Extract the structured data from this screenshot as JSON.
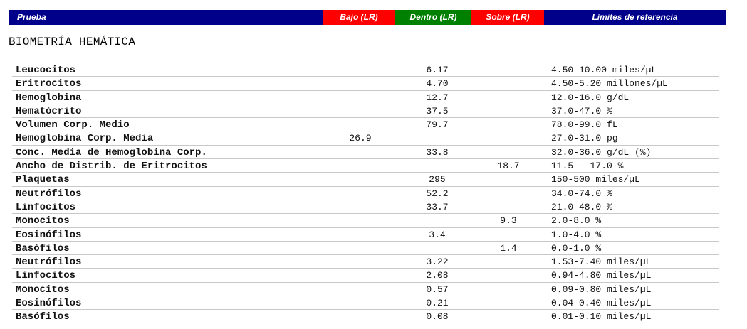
{
  "header": {
    "prueba": "Prueba",
    "bajo": "Bajo (LR)",
    "dentro": "Dentro (LR)",
    "sobre": "Sobre (LR)",
    "limites": "Límites de referencia"
  },
  "colors": {
    "header_blue": "#00008b",
    "header_red": "#ff0000",
    "header_green": "#008000"
  },
  "section_title": "BIOMETRÍA HEMÁTICA",
  "rows": [
    {
      "test": "Leucocitos",
      "bajo": "",
      "dentro": "6.17",
      "sobre": "",
      "ref": "4.50-10.00 miles/µL"
    },
    {
      "test": "Eritrocitos",
      "bajo": "",
      "dentro": "4.70",
      "sobre": "",
      "ref": "4.50-5.20 millones/µL"
    },
    {
      "test": "Hemoglobina",
      "bajo": "",
      "dentro": "12.7",
      "sobre": "",
      "ref": "12.0-16.0 g/dL"
    },
    {
      "test": "Hematócrito",
      "bajo": "",
      "dentro": "37.5",
      "sobre": "",
      "ref": "37.0-47.0 %"
    },
    {
      "test": "Volumen Corp. Medio",
      "bajo": "",
      "dentro": "79.7",
      "sobre": "",
      "ref": "78.0-99.0 fL"
    },
    {
      "test": "Hemoglobina Corp. Media",
      "bajo": "26.9",
      "dentro": "",
      "sobre": "",
      "ref": "27.0-31.0 pg"
    },
    {
      "test": "Conc. Media de Hemoglobina Corp.",
      "bajo": "",
      "dentro": "33.8",
      "sobre": "",
      "ref": "32.0-36.0 g/dL (%)"
    },
    {
      "test": "Ancho de Distrib. de Eritrocitos",
      "bajo": "",
      "dentro": "",
      "sobre": "18.7",
      "ref": "11.5 - 17.0 %"
    },
    {
      "test": "Plaquetas",
      "bajo": "",
      "dentro": "295",
      "sobre": "",
      "ref": "150-500 miles/µL"
    },
    {
      "test": "Neutrófilos",
      "bajo": "",
      "dentro": "52.2",
      "sobre": "",
      "ref": "34.0-74.0 %"
    },
    {
      "test": "Linfocitos",
      "bajo": "",
      "dentro": "33.7",
      "sobre": "",
      "ref": "21.0-48.0 %"
    },
    {
      "test": "Monocitos",
      "bajo": "",
      "dentro": "",
      "sobre": "9.3",
      "ref": "2.0-8.0 %"
    },
    {
      "test": "Eosinófilos",
      "bajo": "",
      "dentro": "3.4",
      "sobre": "",
      "ref": "1.0-4.0 %"
    },
    {
      "test": "Basófilos",
      "bajo": "",
      "dentro": "",
      "sobre": "1.4",
      "ref": "0.0-1.0 %"
    },
    {
      "test": "Neutrófilos",
      "bajo": "",
      "dentro": "3.22",
      "sobre": "",
      "ref": "1.53-7.40 miles/µL"
    },
    {
      "test": "Linfocitos",
      "bajo": "",
      "dentro": "2.08",
      "sobre": "",
      "ref": "0.94-4.80 miles/µL"
    },
    {
      "test": "Monocitos",
      "bajo": "",
      "dentro": "0.57",
      "sobre": "",
      "ref": "0.09-0.80 miles/µL"
    },
    {
      "test": "Eosinófilos",
      "bajo": "",
      "dentro": "0.21",
      "sobre": "",
      "ref": "0.04-0.40 miles/µL"
    },
    {
      "test": "Basófilos",
      "bajo": "",
      "dentro": "0.08",
      "sobre": "",
      "ref": "0.01-0.10 miles/µL"
    }
  ]
}
